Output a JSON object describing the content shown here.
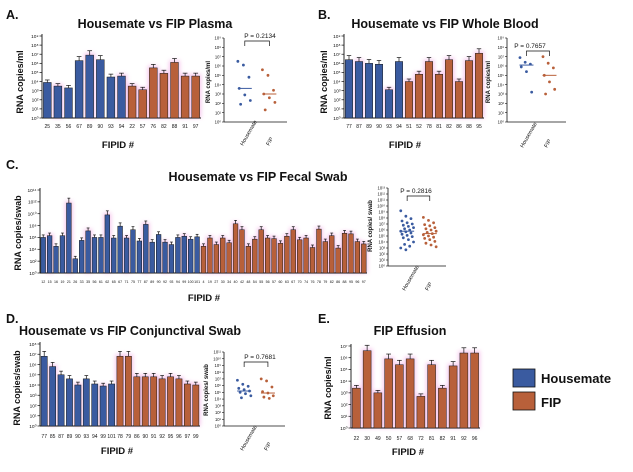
{
  "colors": {
    "housemate": "#3a5ba0",
    "fip": "#b8603a",
    "pink_halo": "#f3b3e6",
    "errorbar": "#111111"
  },
  "legend": {
    "housemate": "Housemate",
    "fip": "FIP"
  },
  "panels": [
    {
      "letter": "A.",
      "title": "Housemate vs FIP Plasma",
      "xlabel": "FIPID #",
      "ylabel": "RNA copies/ml",
      "yticks": [
        "10⁰",
        "10¹",
        "10²",
        "10³",
        "10⁴",
        "10⁵",
        "10⁶",
        "10⁷",
        "10⁸",
        "10⁹"
      ]
    },
    {
      "letter": "B.",
      "title": "Housemate vs FIP Whole Blood",
      "xlabel": "FIPID #",
      "ylabel": "RNA copies/ml",
      "yticks": [
        "10⁰",
        "10¹",
        "10²",
        "10³",
        "10⁴",
        "10⁵",
        "10⁶",
        "10⁷",
        "10⁸",
        "10⁹"
      ]
    },
    {
      "letter": "C.",
      "title": "Housemate vs FIP Fecal Swab",
      "xlabel": "FIPID #",
      "ylabel": "RNA copies/swab",
      "yticks": [
        "10⁰",
        "10²",
        "10⁴",
        "10⁶",
        "10⁸",
        "10¹⁰",
        "10¹²",
        "10¹⁴"
      ]
    },
    {
      "letter": "D.",
      "title": "Housemate vs FIP Conjunctival Swab",
      "xlabel": "FIPID #",
      "ylabel": "RNA copies/swab",
      "yticks": [
        "10⁰",
        "10¹",
        "10²",
        "10³",
        "10⁴",
        "10⁵",
        "10⁶",
        "10⁷",
        "10⁸"
      ]
    },
    {
      "letter": "E.",
      "title": "FIP Effusion",
      "xlabel": "FIPID #",
      "ylabel": "RNA copies/ml",
      "yticks": [
        "10⁰",
        "10¹",
        "10²",
        "10³",
        "10⁴",
        "10⁵",
        "10⁶",
        "10⁷"
      ]
    }
  ],
  "insets": [
    {
      "pvalue": "P = 0.2134",
      "ylabel": "RNA copies/ml",
      "groups": [
        "Housemate",
        "FIP"
      ],
      "yticks": [
        "10⁰",
        "10¹",
        "10²",
        "10³",
        "10⁴",
        "10⁵",
        "10⁶",
        "10⁷",
        "10⁸",
        "10⁹"
      ]
    },
    {
      "pvalue": "P = 0.7657",
      "ylabel": "RNA copies/ml",
      "groups": [
        "Housemate",
        "FIP"
      ],
      "yticks": [
        "10⁰",
        "10¹",
        "10²",
        "10³",
        "10⁴",
        "10⁵",
        "10⁶",
        "10⁷",
        "10⁸",
        "10⁹"
      ]
    },
    {
      "pvalue": "P = 0.2816",
      "ylabel": "RNA copies/ swab",
      "groups": [
        "Housemate",
        "FIP"
      ],
      "yticks": [
        "10⁰",
        "10¹",
        "10²",
        "10³",
        "10⁴",
        "10⁵",
        "10⁶",
        "10⁷",
        "10⁸",
        "10⁹",
        "10¹⁰",
        "10¹¹",
        "10¹²",
        "10¹³"
      ]
    },
    {
      "pvalue": "P = 0.7681",
      "ylabel": "RNA copies/ swab",
      "groups": [
        "Housemate",
        "FIP"
      ],
      "yticks": [
        "10⁰",
        "10¹",
        "10²",
        "10³",
        "10⁴",
        "10⁵",
        "10⁶",
        "10⁷",
        "10⁸",
        "10⁹",
        "10¹⁰",
        "10¹¹"
      ]
    }
  ],
  "chart_data": [
    {
      "type": "bar",
      "title": "Housemate vs FIP Plasma",
      "xlabel": "FIPID #",
      "ylabel": "RNA copies/ml",
      "ylim": [
        0,
        9
      ],
      "log_scale": true,
      "categories": [
        "25",
        "35",
        "56",
        "67",
        "89",
        "90",
        "93",
        "94",
        "22",
        "57",
        "76",
        "82",
        "88",
        "91",
        "97"
      ],
      "groups": [
        "Housemate",
        "Housemate",
        "Housemate",
        "Housemate",
        "Housemate",
        "Housemate",
        "Housemate",
        "Housemate",
        "FIP",
        "FIP",
        "FIP",
        "FIP",
        "FIP",
        "FIP",
        "FIP"
      ],
      "values_log10": [
        3.9,
        3.5,
        3.3,
        6.3,
        6.9,
        6.4,
        4.5,
        4.6,
        3.5,
        3.1,
        5.5,
        4.9,
        6.1,
        4.6,
        4.6
      ]
    },
    {
      "type": "scatter",
      "title": "Housemate vs FIP Plasma",
      "pvalue": "P = 0.2134",
      "groups": [
        "Housemate",
        "FIP"
      ],
      "points_log10": {
        "Housemate": [
          6.5,
          6.1,
          4.8,
          3.6,
          2.9,
          2.3,
          1.9
        ],
        "FIP": [
          5.6,
          5.0,
          3.4,
          3.0,
          2.6,
          2.1,
          1.3
        ]
      },
      "median_log10": {
        "Housemate": 3.6,
        "FIP": 3.0
      }
    },
    {
      "type": "bar",
      "title": "Housemate vs FIP Whole Blood",
      "xlabel": "FIPID #",
      "ylabel": "RNA copies/ml",
      "ylim": [
        0,
        9
      ],
      "log_scale": true,
      "categories": [
        "77",
        "87",
        "89",
        "90",
        "93",
        "94",
        "51",
        "52",
        "78",
        "81",
        "82",
        "86",
        "88",
        "95"
      ],
      "groups": [
        "Housemate",
        "Housemate",
        "Housemate",
        "Housemate",
        "Housemate",
        "Housemate",
        "FIP",
        "FIP",
        "FIP",
        "FIP",
        "FIP",
        "FIP",
        "FIP",
        "FIP"
      ],
      "values_log10": [
        6.4,
        6.2,
        6.0,
        5.9,
        3.1,
        6.2,
        4.0,
        4.8,
        6.2,
        4.8,
        6.4,
        4.0,
        6.3,
        7.1
      ]
    },
    {
      "type": "scatter",
      "title": "Housemate vs FIP Whole Blood",
      "pvalue": "P = 0.7657",
      "groups": [
        "Housemate",
        "FIP"
      ],
      "points_log10": {
        "Housemate": [
          6.9,
          6.4,
          6.2,
          5.9,
          5.4,
          3.2
        ],
        "FIP": [
          7.0,
          6.3,
          5.8,
          5.0,
          4.3,
          3.5,
          3.0
        ]
      },
      "median_log10": {
        "Housemate": 6.1,
        "FIP": 5.0
      }
    },
    {
      "type": "bar",
      "title": "Housemate vs FIP Fecal Swab",
      "xlabel": "FIPID #",
      "ylabel": "RNA copies/swab",
      "ylim": [
        0,
        14
      ],
      "log_scale": true,
      "categories": [
        "12",
        "15",
        "16",
        "19",
        "21",
        "26",
        "33",
        "35",
        "56",
        "61",
        "62",
        "65",
        "67",
        "71",
        "75",
        "77",
        "87",
        "89",
        "90",
        "92",
        "93",
        "94",
        "99",
        "100",
        "101",
        "4",
        "19",
        "27",
        "30",
        "34",
        "40",
        "42",
        "48",
        "54",
        "55",
        "56",
        "57",
        "60",
        "63",
        "67",
        "70",
        "74",
        "76",
        "78",
        "79",
        "82",
        "86",
        "88",
        "95",
        "96",
        "97"
      ],
      "groups": [
        "Housemate",
        "Housemate",
        "Housemate",
        "Housemate",
        "Housemate",
        "Housemate",
        "Housemate",
        "Housemate",
        "Housemate",
        "Housemate",
        "Housemate",
        "Housemate",
        "Housemate",
        "Housemate",
        "Housemate",
        "Housemate",
        "Housemate",
        "Housemate",
        "Housemate",
        "Housemate",
        "Housemate",
        "Housemate",
        "Housemate",
        "Housemate",
        "Housemate",
        "FIP",
        "FIP",
        "FIP",
        "FIP",
        "FIP",
        "FIP",
        "FIP",
        "FIP",
        "FIP",
        "FIP",
        "FIP",
        "FIP",
        "FIP",
        "FIP",
        "FIP",
        "FIP",
        "FIP",
        "FIP",
        "FIP",
        "FIP",
        "FIP",
        "FIP",
        "FIP",
        "FIP",
        "FIP",
        "FIP"
      ],
      "values_log10": [
        6.0,
        6.3,
        4.5,
        6.3,
        11.8,
        2.4,
        5.5,
        7.1,
        6.0,
        6.0,
        9.8,
        5.9,
        7.9,
        5.9,
        7.3,
        5.4,
        8.2,
        5.2,
        6.5,
        5.2,
        4.8,
        6.0,
        6.2,
        5.7,
        6.1,
        4.5,
        5.9,
        4.8,
        5.9,
        5.1,
        8.3,
        7.3,
        4.5,
        5.7,
        7.3,
        5.9,
        5.8,
        5.0,
        6.2,
        7.3,
        5.6,
        5.9,
        4.3,
        7.4,
        5.3,
        6.3,
        4.2,
        6.7,
        6.6,
        5.3,
        4.9
      ]
    },
    {
      "type": "scatter",
      "title": "Housemate vs FIP Fecal Swab",
      "pvalue": "P = 0.2816",
      "groups": [
        "Housemate",
        "FIP"
      ],
      "points_log10": {
        "Housemate": [
          9.2,
          8.3,
          7.9,
          7.5,
          7.2,
          7.0,
          6.8,
          6.6,
          6.4,
          6.2,
          6.0,
          5.8,
          5.7,
          5.5,
          5.3,
          5.1,
          4.9,
          4.7,
          4.4,
          4.0,
          3.6,
          3.3,
          3.0,
          2.7
        ],
        "FIP": [
          8.1,
          7.6,
          7.2,
          6.9,
          6.7,
          6.4,
          6.2,
          6.0,
          5.8,
          5.6,
          5.4,
          5.2,
          5.0,
          4.8,
          4.6,
          4.4,
          4.1,
          3.8,
          3.5,
          3.2
        ]
      },
      "median_log10": {
        "Housemate": 5.8,
        "FIP": 5.4
      }
    },
    {
      "type": "bar",
      "title": "Housemate vs FIP Conjunctival Swab",
      "xlabel": "FIPID #",
      "ylabel": "RNA copies/swab",
      "ylim": [
        0,
        8
      ],
      "log_scale": true,
      "categories": [
        "77",
        "85",
        "87",
        "89",
        "90",
        "93",
        "94",
        "99",
        "101",
        "78",
        "79",
        "86",
        "90",
        "91",
        "92",
        "95",
        "96",
        "97",
        "99"
      ],
      "groups": [
        "Housemate",
        "Housemate",
        "Housemate",
        "Housemate",
        "Housemate",
        "Housemate",
        "Housemate",
        "Housemate",
        "Housemate",
        "FIP",
        "FIP",
        "FIP",
        "FIP",
        "FIP",
        "FIP",
        "FIP",
        "FIP",
        "FIP",
        "FIP"
      ],
      "values_log10": [
        6.8,
        5.8,
        5.0,
        4.6,
        4.0,
        4.6,
        4.1,
        3.9,
        4.1,
        6.8,
        6.8,
        4.8,
        4.8,
        4.8,
        4.6,
        4.8,
        4.6,
        4.1,
        4.0
      ]
    },
    {
      "type": "scatter",
      "title": "Housemate vs FIP Conjunctival Swab",
      "pvalue": "P = 0.7681",
      "groups": [
        "Housemate",
        "FIP"
      ],
      "points_log10": {
        "Housemate": [
          6.8,
          6.2,
          5.9,
          5.6,
          5.4,
          5.2,
          5.0,
          4.8,
          4.5,
          4.2
        ],
        "FIP": [
          7.0,
          6.7,
          5.8,
          5.1,
          4.9,
          4.5,
          4.3,
          4.1
        ]
      },
      "median_log10": {
        "Housemate": 5.2,
        "FIP": 4.9
      }
    },
    {
      "type": "bar",
      "title": "FIP Effusion",
      "xlabel": "FIPID #",
      "ylabel": "RNA copies/ml",
      "ylim": [
        0,
        7
      ],
      "log_scale": true,
      "categories": [
        "22",
        "30",
        "49",
        "50",
        "57",
        "68",
        "72",
        "81",
        "82",
        "91",
        "92",
        "96"
      ],
      "groups": [
        "FIP",
        "FIP",
        "FIP",
        "FIP",
        "FIP",
        "FIP",
        "FIP",
        "FIP",
        "FIP",
        "FIP",
        "FIP",
        "FIP"
      ],
      "values_log10": [
        3.4,
        6.6,
        3.0,
        5.9,
        5.4,
        5.9,
        2.7,
        5.4,
        3.4,
        5.3,
        6.4,
        6.4
      ]
    }
  ]
}
